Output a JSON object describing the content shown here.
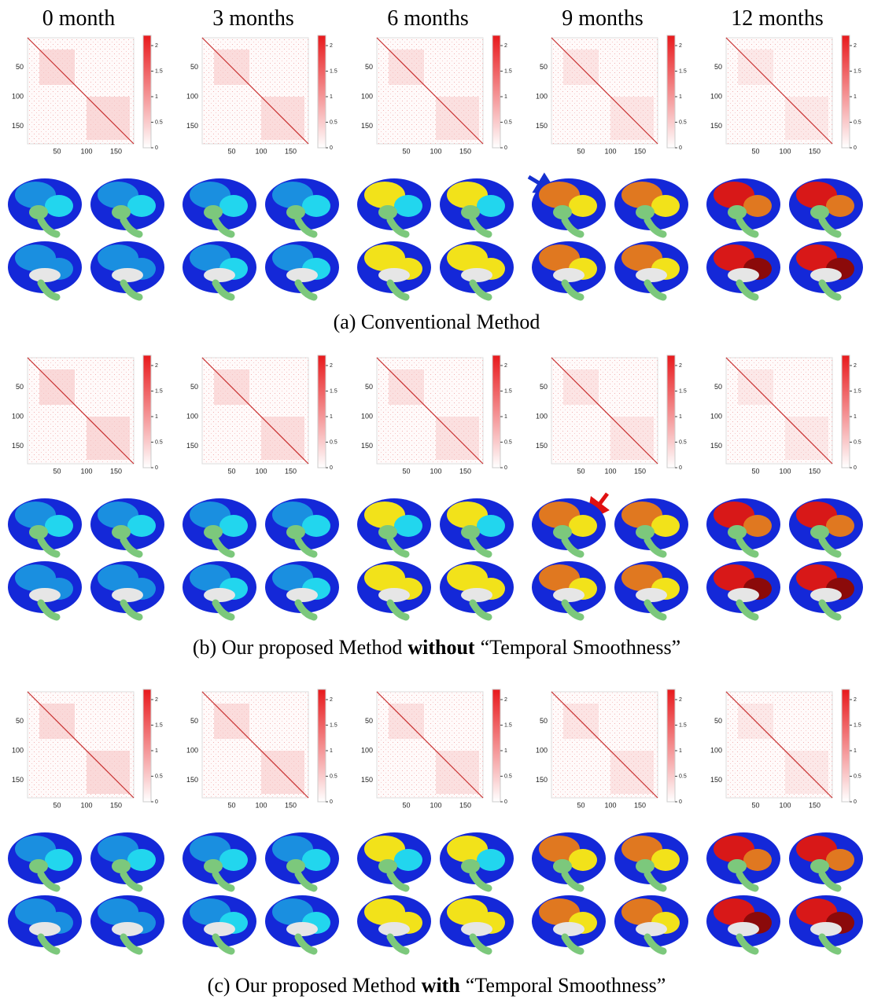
{
  "columns": [
    "0 month",
    "3 months",
    "6 months",
    "9 months",
    "12 months"
  ],
  "matrix_ticks": [
    50,
    100,
    150
  ],
  "matrix_lim": [
    0,
    180
  ],
  "colorbar_ticks": [
    0,
    0.5,
    1,
    1.5,
    2
  ],
  "colorbar_lim": [
    0,
    2.2
  ],
  "panels": [
    {
      "caption_before": "(a) Conventional Method"
    },
    {
      "caption_before": "(b) Our proposed Method",
      "caption_bold": "without",
      "caption_after": "“Temporal Smoothness”"
    },
    {
      "caption_before": "(c) Our proposed Method",
      "caption_bold": "with",
      "caption_after": "“Temporal Smoothness”"
    }
  ]
}
